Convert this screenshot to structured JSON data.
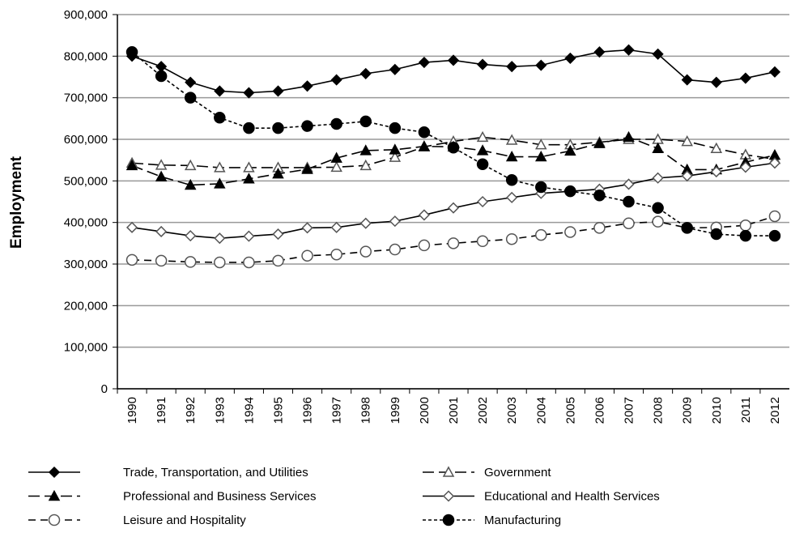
{
  "chart_data": {
    "type": "line",
    "y_label": "Employment",
    "categories": [
      "1990",
      "1991",
      "1992",
      "1993",
      "1994",
      "1995",
      "1996",
      "1997",
      "1998",
      "1999",
      "2000",
      "2001",
      "2002",
      "2003",
      "2004",
      "2005",
      "2006",
      "2007",
      "2008",
      "2009",
      "2010",
      "2011",
      "2012"
    ],
    "ylim": [
      0,
      900000
    ],
    "yticks": [
      {
        "value": 0,
        "label": "0"
      },
      {
        "value": 100000,
        "label": "100,000"
      },
      {
        "value": 200000,
        "label": "200,000"
      },
      {
        "value": 300000,
        "label": "300,000"
      },
      {
        "value": 400000,
        "label": "400,000"
      },
      {
        "value": 500000,
        "label": "500,000"
      },
      {
        "value": 600000,
        "label": "600,000"
      },
      {
        "value": 700000,
        "label": "700,000"
      },
      {
        "value": 800000,
        "label": "800,000"
      },
      {
        "value": 900000,
        "label": "900,000"
      }
    ],
    "grid": true,
    "series": [
      {
        "name": "Trade, Transportation, and Utilities",
        "color": "#000000",
        "dash": "solid",
        "marker": "diamond",
        "filled": true,
        "values": [
          800000,
          775000,
          737000,
          716000,
          712000,
          716000,
          728000,
          743000,
          758000,
          768000,
          785000,
          790000,
          780000,
          775000,
          778000,
          795000,
          810000,
          815000,
          805000,
          743000,
          737000,
          747000,
          762000
        ]
      },
      {
        "name": "Government",
        "color": "#000000",
        "dash": "long",
        "marker": "triangle",
        "filled": false,
        "values": [
          543000,
          538000,
          537000,
          532000,
          532000,
          532000,
          532000,
          533000,
          537000,
          557000,
          582000,
          595000,
          605000,
          598000,
          587000,
          587000,
          593000,
          600000,
          600000,
          595000,
          578000,
          563000,
          552000
        ]
      },
      {
        "name": "Professional and Business Services",
        "color": "#000000",
        "dash": "long",
        "marker": "triangle",
        "filled": true,
        "values": [
          537000,
          510000,
          490000,
          493000,
          505000,
          517000,
          528000,
          555000,
          573000,
          575000,
          583000,
          582000,
          573000,
          558000,
          558000,
          572000,
          590000,
          605000,
          578000,
          527000,
          527000,
          545000,
          562000
        ]
      },
      {
        "name": "Educational and Health Services",
        "color": "#000000",
        "dash": "solid",
        "marker": "diamond",
        "filled": false,
        "values": [
          388000,
          378000,
          368000,
          362000,
          367000,
          372000,
          387000,
          388000,
          398000,
          403000,
          418000,
          435000,
          450000,
          460000,
          470000,
          475000,
          480000,
          492000,
          507000,
          512000,
          522000,
          533000,
          543000
        ]
      },
      {
        "name": "Leisure and Hospitality",
        "color": "#000000",
        "dash": "medium",
        "marker": "circle",
        "filled": false,
        "values": [
          310000,
          308000,
          305000,
          304000,
          304000,
          308000,
          320000,
          323000,
          330000,
          335000,
          345000,
          350000,
          355000,
          360000,
          370000,
          377000,
          387000,
          398000,
          402000,
          387000,
          388000,
          393000,
          415000
        ]
      },
      {
        "name": "Manufacturing",
        "color": "#000000",
        "dash": "short",
        "marker": "circle",
        "filled": true,
        "values": [
          810000,
          752000,
          700000,
          652000,
          627000,
          627000,
          632000,
          637000,
          643000,
          627000,
          617000,
          580000,
          540000,
          502000,
          485000,
          475000,
          465000,
          450000,
          435000,
          387000,
          372000,
          368000,
          368000
        ]
      }
    ]
  }
}
